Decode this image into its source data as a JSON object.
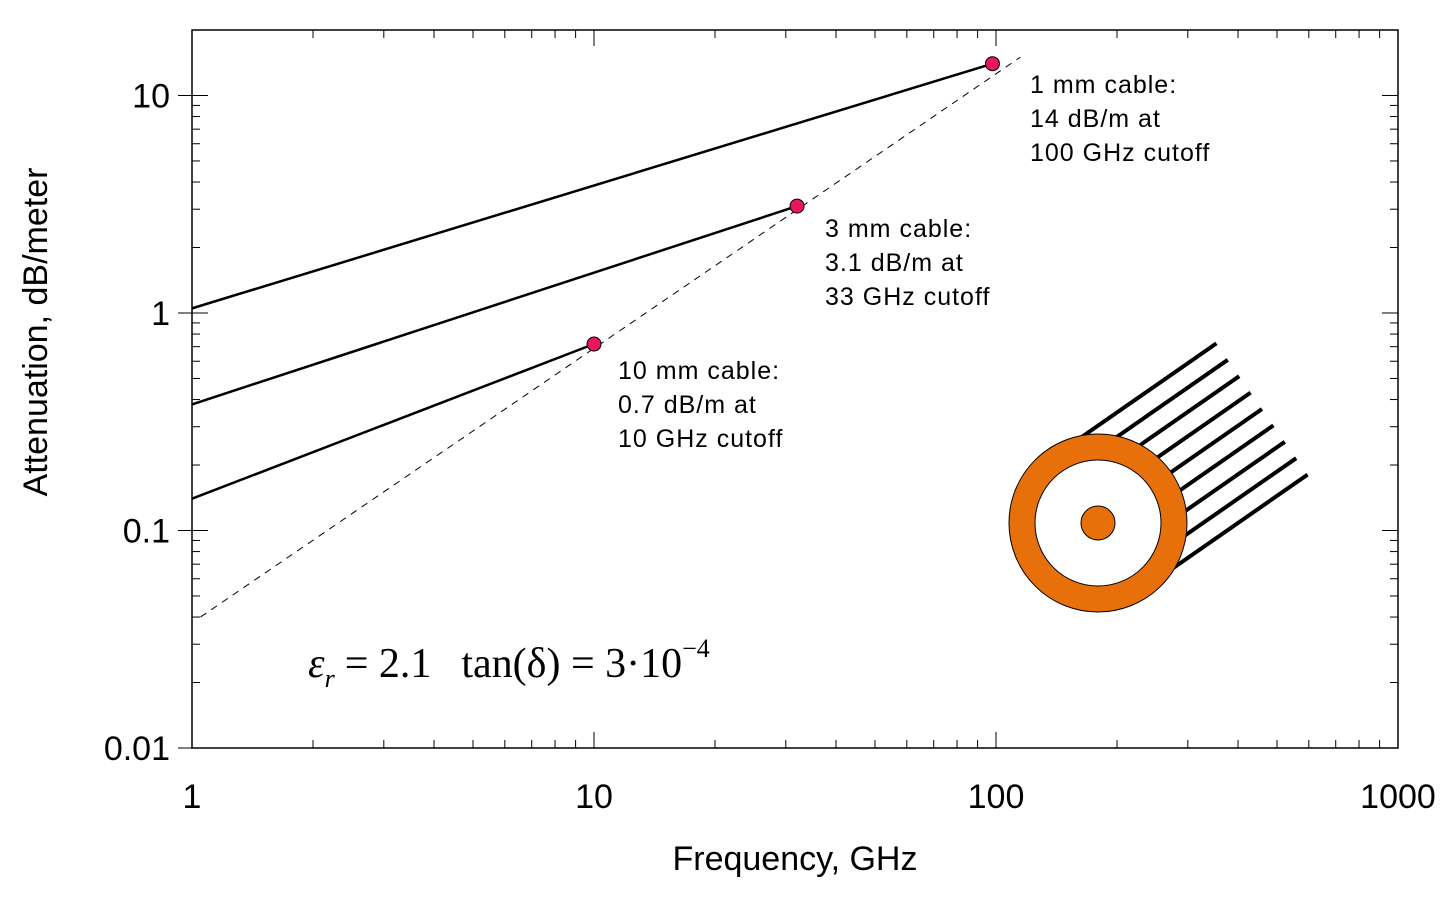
{
  "chart_data": {
    "type": "line",
    "x_label": "Frequency, GHz",
    "y_label": "Attenuation, dB/meter",
    "log_x": true,
    "log_y": true,
    "xlim": [
      1,
      1000
    ],
    "xticks": [
      1,
      10,
      100,
      1000
    ],
    "ylim": [
      0.01,
      20
    ],
    "yticks": [
      0.01,
      0.1,
      1,
      10
    ],
    "series": [
      {
        "color": "#000000",
        "style": "solid",
        "x": [
          1,
          98
        ],
        "values": [
          1.05,
          14
        ]
      },
      {
        "color": "#000000",
        "style": "solid",
        "x": [
          1,
          32
        ],
        "values": [
          0.38,
          3.1
        ]
      },
      {
        "color": "#000000",
        "style": "solid",
        "x": [
          1,
          10
        ],
        "values": [
          0.14,
          0.72
        ]
      },
      {
        "color": "#000000",
        "style": "dashed",
        "x": [
          1.05,
          115
        ],
        "values": [
          0.04,
          15
        ]
      }
    ],
    "points": {
      "color": "#e8175d",
      "x": [
        98,
        32,
        10
      ],
      "values": [
        14,
        3.1,
        0.72
      ]
    },
    "annotations": [
      {
        "lines": [
          "1 mm cable:",
          "14 dB/m at",
          "100 GHz cutoff"
        ]
      },
      {
        "lines": [
          "3 mm cable:",
          "3.1 dB/m at",
          "33 GHz cutoff"
        ]
      },
      {
        "lines": [
          "10 mm cable:",
          "0.7 dB/m at",
          "10 GHz cutoff"
        ]
      }
    ],
    "formula": {
      "symbol": "ε",
      "subscript": "r",
      "value": "= 2.1",
      "loss": "tan(δ) = 3·10",
      "exponent": "−4"
    }
  }
}
